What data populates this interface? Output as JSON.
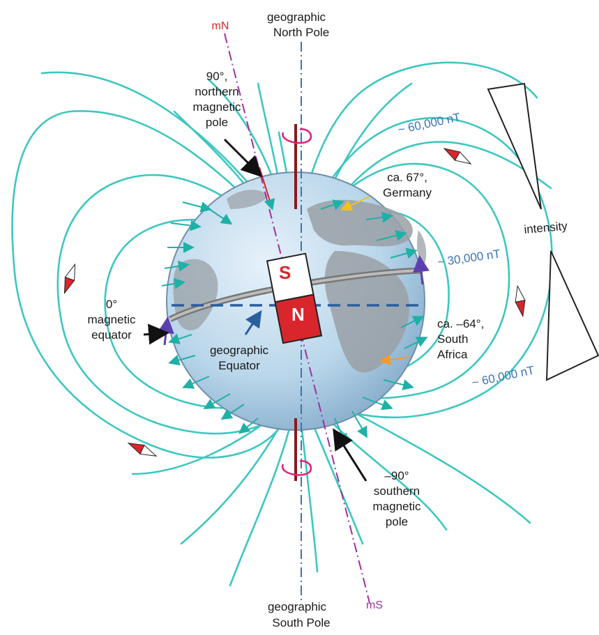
{
  "labels": {
    "geo_north": [
      "geographic",
      "North Pole"
    ],
    "geo_south": [
      "geographic",
      "South Pole"
    ],
    "mag_north_short": "mN",
    "mag_south_short": "mS",
    "northern_pole": [
      "90°,",
      "northern",
      "magnetic",
      "pole"
    ],
    "southern_pole": [
      "–90°",
      "southern",
      "magnetic",
      "pole"
    ],
    "germany": [
      "ca. 67°,",
      "Germany"
    ],
    "south_africa": [
      "ca. –64°,",
      "South",
      "Africa"
    ],
    "mag_equator": [
      "0°",
      "magnetic",
      "equator"
    ],
    "geo_equator": [
      "geographic",
      "Equator"
    ],
    "intensity_60k_top": "~ 60,000 nT",
    "intensity_30k": "~ 30,000 nT",
    "intensity_60k_bottom": "~ 60,000 nT",
    "intensity": "intensity",
    "magnet_s": "S",
    "magnet_n": "N"
  },
  "colors": {
    "field_line": "#3cc7c0",
    "globe": "#b9d6ea",
    "land": "#9aa0a6",
    "magnet_north": "#d8262c",
    "magnet_south": "#ffffff",
    "geo_axis": "#3a74b4",
    "mag_axis": "#a0309c",
    "intensity_text": "#3a74b4"
  }
}
